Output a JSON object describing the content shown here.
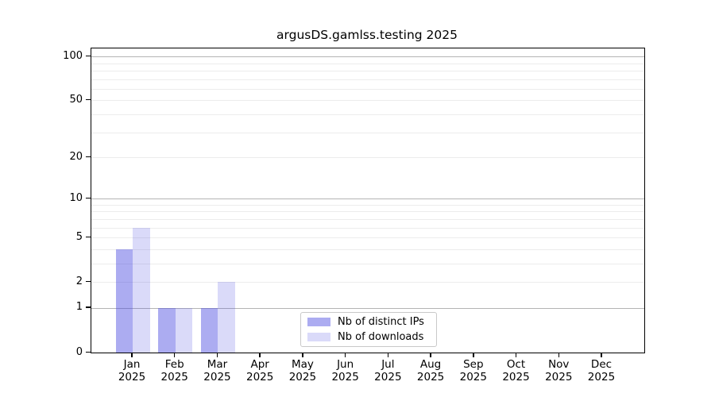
{
  "chart_data": {
    "type": "bar",
    "title": "argusDS.gamlss.testing 2025",
    "categories": [
      "Jan",
      "Feb",
      "Mar",
      "Apr",
      "May",
      "Jun",
      "Jul",
      "Aug",
      "Sep",
      "Oct",
      "Nov",
      "Dec"
    ],
    "category_year": "2025",
    "series": [
      {
        "name": "Nb of distinct IPs",
        "color": "rgba(70,70,225,0.45)",
        "values": [
          4,
          1,
          1,
          0,
          0,
          0,
          0,
          0,
          0,
          0,
          0,
          0
        ]
      },
      {
        "name": "Nb of downloads",
        "color": "rgba(70,70,225,0.20)",
        "values": [
          6,
          1,
          2,
          0,
          0,
          0,
          0,
          0,
          0,
          0,
          0,
          0
        ]
      }
    ],
    "xlabel": "",
    "ylabel": "",
    "yscale": "log1p",
    "ylim": [
      0,
      112
    ],
    "ytick_values": [
      0,
      1,
      2,
      5,
      10,
      20,
      50,
      100
    ],
    "major_grid_values": [
      1,
      10,
      100
    ],
    "minor_grid_values": [
      2,
      3,
      4,
      5,
      6,
      7,
      8,
      9,
      20,
      30,
      40,
      50,
      60,
      70,
      80,
      90
    ],
    "grid": "on",
    "legend_position": "bottom-center"
  },
  "colors": {
    "major_grid": "#b4b4b4",
    "minor_grid": "#ececec",
    "axis_frame": "#000000",
    "legend_border": "#c9c9c9",
    "background": "#ffffff"
  }
}
